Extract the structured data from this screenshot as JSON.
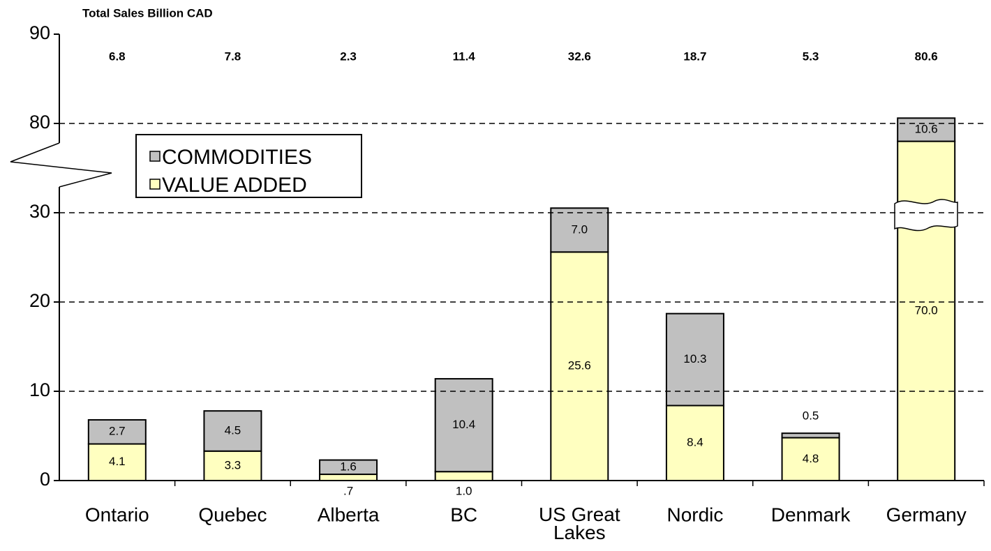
{
  "chart_data": {
    "type": "stacked_bar",
    "y_axis_label": "Total Sales Billion CAD",
    "categories": [
      "Ontario",
      "Quebec",
      "Alberta",
      "BC",
      "US Great Lakes",
      "Nordic",
      "Denmark",
      "Germany"
    ],
    "series": [
      {
        "name": "VALUE ADDED",
        "color": "#ffffc0",
        "values": [
          4.1,
          3.3,
          0.7,
          1.0,
          25.6,
          8.4,
          4.8,
          70.0
        ],
        "value_labels": [
          "4.1",
          "3.3",
          ".7",
          "1.0",
          "25.6",
          "8.4",
          "4.8",
          "70.0"
        ]
      },
      {
        "name": "COMMODITIES",
        "color": "#c0c0c0",
        "values": [
          2.7,
          4.5,
          1.6,
          10.4,
          7.0,
          10.3,
          0.5,
          10.6
        ],
        "value_labels": [
          "2.7",
          "4.5",
          "1.6",
          "10.4",
          "7.0",
          "10.3",
          "0.5",
          "10.6"
        ]
      }
    ],
    "totals": [
      6.8,
      7.8,
      2.3,
      11.4,
      32.6,
      18.7,
      5.3,
      80.6
    ],
    "ylim": [
      0,
      90
    ],
    "yticks": [
      0,
      10,
      20,
      30,
      80,
      90
    ],
    "grid": true,
    "axis_break": true
  }
}
